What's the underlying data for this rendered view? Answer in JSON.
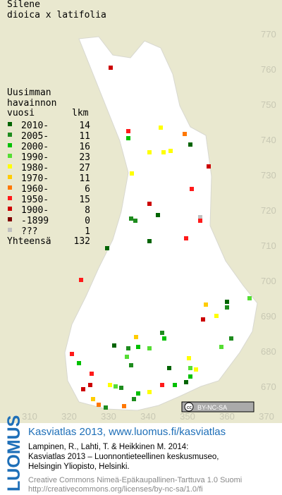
{
  "header": {
    "title": [
      "Silene",
      "dioica x latifolia"
    ]
  },
  "legend": {
    "heading": [
      "Uusimman",
      "havainnon",
      "vuosi"
    ],
    "count_heading": "lkm",
    "rows": [
      {
        "label": "2010-",
        "count": 14
      },
      {
        "label": "2005-",
        "count": 11
      },
      {
        "label": "2000-",
        "count": 16
      },
      {
        "label": "1990-",
        "count": 23
      },
      {
        "label": "1980-",
        "count": 27
      },
      {
        "label": "1970-",
        "count": 11
      },
      {
        "label": "1960-",
        "count": 6
      },
      {
        "label": "1950-",
        "count": 15
      },
      {
        "label": "1900-",
        "count": 8
      },
      {
        "label": "-1899",
        "count": 0
      },
      {
        "label": "???",
        "count": 1
      }
    ],
    "total": {
      "label": "Yhteensä",
      "count": 132
    }
  },
  "grid": {
    "x_labels": [
      "310",
      "320",
      "330",
      "340",
      "350",
      "360",
      "370"
    ],
    "y_labels": [
      "770",
      "760",
      "750",
      "740",
      "730",
      "720",
      "710",
      "700",
      "690",
      "680",
      "670"
    ]
  },
  "license_badge": "BY-NC-SA",
  "footer": {
    "logo": "LUOMUS",
    "link": "Kasviatlas 2013, www.luomus.fi/kasviatlas",
    "citation": [
      "Lampinen, R., Lahti, T. & Heikkinen M. 2014:",
      "Kasviatlas 2013 – Luonnontieteellinen keskusmuseo,",
      "Helsingin Yliopisto, Helsinki."
    ],
    "license": [
      "Creative Commons Nimeä-Epäkaupallinen-Tarttuva 1.0 Suomi",
      "http://creativecommons.org/licenses/by-nc-sa/1.0/fi"
    ]
  }
}
